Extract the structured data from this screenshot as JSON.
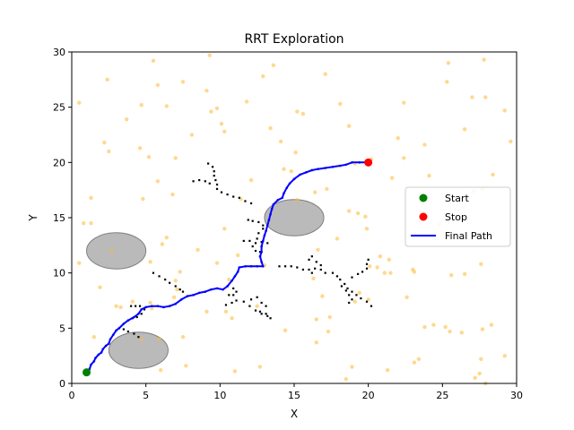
{
  "chart_data": {
    "type": "scatter",
    "title": "RRT Exploration",
    "xlabel": "X",
    "ylabel": "Y",
    "xlim": [
      0,
      30
    ],
    "ylim": [
      0,
      30
    ],
    "xticks": [
      0,
      5,
      10,
      15,
      20,
      25,
      30
    ],
    "yticks": [
      0,
      5,
      10,
      15,
      20,
      25,
      30
    ],
    "grid": false,
    "legend_position": "center-right",
    "colors": {
      "samples": "#ffb833",
      "tree": "#000000",
      "path": "#0000ff",
      "start": "#008000",
      "stop": "#ff0000",
      "obstacle": "#a9a9a9"
    },
    "obstacles": [
      {
        "cx": 3.0,
        "cy": 12.0,
        "rx": 2.0,
        "ry": 2.0
      },
      {
        "cx": 15.0,
        "cy": 15.0,
        "rx": 2.0,
        "ry": 2.0
      },
      {
        "cx": 4.5,
        "cy": 3.0,
        "rx": 2.0,
        "ry": 2.0
      }
    ],
    "samples": [
      [
        0.5,
        25.4
      ],
      [
        1.3,
        16.8
      ],
      [
        0.8,
        14.5
      ],
      [
        1.3,
        14.5
      ],
      [
        0.5,
        10.9
      ],
      [
        2.2,
        21.8
      ],
      [
        2.5,
        21.0
      ],
      [
        2.4,
        27.5
      ],
      [
        3.7,
        23.9
      ],
      [
        4.7,
        25.2
      ],
      [
        4.6,
        21.3
      ],
      [
        4.8,
        16.7
      ],
      [
        5.5,
        29.2
      ],
      [
        5.8,
        27.0
      ],
      [
        6.4,
        25.1
      ],
      [
        6.8,
        17.1
      ],
      [
        6.4,
        13.2
      ],
      [
        5.8,
        18.3
      ],
      [
        5.2,
        20.5
      ],
      [
        7.5,
        27.3
      ],
      [
        7.0,
        20.4
      ],
      [
        8.1,
        22.5
      ],
      [
        9.1,
        26.5
      ],
      [
        9.4,
        24.6
      ],
      [
        9.8,
        24.9
      ],
      [
        10.1,
        23.5
      ],
      [
        10.3,
        22.8
      ],
      [
        9.3,
        29.7
      ],
      [
        10.3,
        14.0
      ],
      [
        11.4,
        16.7
      ],
      [
        12.1,
        18.4
      ],
      [
        11.8,
        25.5
      ],
      [
        12.9,
        27.8
      ],
      [
        13.6,
        28.8
      ],
      [
        14.1,
        21.9
      ],
      [
        13.4,
        23.1
      ],
      [
        14.3,
        19.4
      ],
      [
        14.8,
        19.2
      ],
      [
        15.1,
        20.9
      ],
      [
        15.2,
        24.6
      ],
      [
        15.6,
        24.4
      ],
      [
        15.2,
        16.6
      ],
      [
        16.4,
        17.3
      ],
      [
        17.1,
        28.0
      ],
      [
        17.2,
        17.6
      ],
      [
        18.1,
        25.3
      ],
      [
        18.7,
        23.3
      ],
      [
        19.1,
        19.9
      ],
      [
        19.3,
        15.4
      ],
      [
        18.7,
        15.6
      ],
      [
        19.8,
        15.1
      ],
      [
        19.9,
        14.0
      ],
      [
        20.8,
        11.5
      ],
      [
        21.1,
        10.0
      ],
      [
        21.5,
        10.0
      ],
      [
        21.4,
        11.2
      ],
      [
        20.2,
        20.3
      ],
      [
        20.1,
        10.6
      ],
      [
        21.6,
        18.6
      ],
      [
        22.0,
        22.2
      ],
      [
        22.4,
        25.4
      ],
      [
        22.4,
        20.4
      ],
      [
        22.6,
        7.8
      ],
      [
        23.0,
        10.3
      ],
      [
        23.1,
        10.1
      ],
      [
        23.8,
        21.6
      ],
      [
        25.4,
        29.0
      ],
      [
        25.3,
        27.3
      ],
      [
        26.5,
        23.0
      ],
      [
        27.0,
        25.9
      ],
      [
        27.9,
        25.9
      ],
      [
        27.8,
        29.3
      ],
      [
        29.2,
        24.7
      ],
      [
        29.6,
        21.9
      ],
      [
        28.4,
        18.9
      ],
      [
        27.7,
        17.6
      ],
      [
        27.1,
        17.4
      ],
      [
        27.6,
        10.8
      ],
      [
        26.5,
        9.9
      ],
      [
        25.6,
        9.8
      ],
      [
        28.3,
        5.3
      ],
      [
        27.7,
        4.9
      ],
      [
        26.3,
        4.6
      ],
      [
        25.5,
        4.7
      ],
      [
        25.2,
        5.1
      ],
      [
        24.4,
        5.3
      ],
      [
        23.8,
        5.1
      ],
      [
        23.4,
        2.2
      ],
      [
        23.1,
        1.9
      ],
      [
        21.3,
        1.2
      ],
      [
        18.9,
        1.5
      ],
      [
        18.5,
        0.4
      ],
      [
        16.5,
        3.7
      ],
      [
        16.5,
        5.8
      ],
      [
        17.3,
        4.7
      ],
      [
        17.4,
        6.0
      ],
      [
        16.9,
        7.9
      ],
      [
        19.1,
        7.4
      ],
      [
        20.0,
        7.6
      ],
      [
        19.4,
        8.2
      ],
      [
        14.4,
        4.8
      ],
      [
        12.7,
        1.5
      ],
      [
        11.0,
        1.1
      ],
      [
        9.1,
        6.5
      ],
      [
        10.4,
        6.5
      ],
      [
        10.8,
        5.9
      ],
      [
        13.0,
        10.7
      ],
      [
        16.3,
        9.5
      ],
      [
        7.0,
        9.3
      ],
      [
        7.3,
        10.1
      ],
      [
        7.1,
        8.5
      ],
      [
        6.9,
        7.8
      ],
      [
        7.5,
        4.2
      ],
      [
        7.7,
        1.6
      ],
      [
        6.0,
        1.2
      ],
      [
        5.3,
        7.3
      ],
      [
        5.4,
        6.8
      ],
      [
        5.3,
        11.0
      ],
      [
        5.9,
        4.0
      ],
      [
        4.7,
        4.0
      ],
      [
        3.0,
        7.0
      ],
      [
        2.7,
        12.0
      ],
      [
        1.5,
        4.2
      ],
      [
        3.3,
        6.9
      ],
      [
        27.2,
        0.5
      ],
      [
        27.5,
        0.9
      ],
      [
        27.6,
        2.2
      ],
      [
        27.9,
        0.0
      ],
      [
        29.2,
        2.5
      ],
      [
        20.6,
        10.5
      ],
      [
        12.5,
        7.0
      ],
      [
        11.2,
        11.6
      ],
      [
        10.6,
        9.4
      ],
      [
        9.8,
        10.9
      ],
      [
        8.5,
        12.1
      ],
      [
        6.1,
        12.6
      ],
      [
        4.1,
        7.4
      ],
      [
        1.9,
        8.7
      ],
      [
        16.6,
        12.1
      ],
      [
        17.9,
        13.1
      ],
      [
        24.8,
        14.4
      ],
      [
        25.7,
        13.6
      ],
      [
        24.1,
        18.8
      ]
    ],
    "tree_nodes": [
      [
        9.2,
        19.9
      ],
      [
        9.5,
        19.6
      ],
      [
        9.6,
        19.2
      ],
      [
        9.6,
        18.8
      ],
      [
        9.7,
        18.4
      ],
      [
        9.8,
        18.0
      ],
      [
        9.8,
        17.6
      ],
      [
        10.1,
        17.3
      ],
      [
        10.5,
        17.1
      ],
      [
        10.9,
        16.9
      ],
      [
        11.3,
        16.8
      ],
      [
        11.7,
        16.5
      ],
      [
        12.1,
        16.3
      ],
      [
        8.2,
        18.3
      ],
      [
        8.6,
        18.4
      ],
      [
        9.0,
        18.3
      ],
      [
        9.3,
        18.1
      ],
      [
        11.9,
        14.8
      ],
      [
        12.2,
        14.7
      ],
      [
        12.6,
        14.6
      ],
      [
        12.9,
        14.3
      ],
      [
        12.9,
        14.0
      ],
      [
        12.6,
        13.6
      ],
      [
        12.5,
        13.1
      ],
      [
        12.8,
        12.8
      ],
      [
        13.2,
        12.7
      ],
      [
        11.6,
        12.9
      ],
      [
        12.0,
        12.9
      ],
      [
        12.4,
        12.7
      ],
      [
        12.2,
        12.4
      ],
      [
        12.4,
        12.0
      ],
      [
        12.7,
        11.9
      ],
      [
        5.5,
        10.0
      ],
      [
        5.9,
        9.7
      ],
      [
        6.3,
        9.4
      ],
      [
        6.6,
        9.1
      ],
      [
        7.0,
        8.8
      ],
      [
        7.3,
        8.5
      ],
      [
        7.5,
        8.3
      ],
      [
        4.0,
        7.0
      ],
      [
        4.3,
        7.0
      ],
      [
        4.6,
        7.0
      ],
      [
        4.9,
        6.7
      ],
      [
        4.7,
        6.3
      ],
      [
        4.4,
        6.0
      ],
      [
        4.1,
        5.9
      ],
      [
        3.5,
        4.9
      ],
      [
        3.8,
        4.7
      ],
      [
        4.2,
        4.5
      ],
      [
        4.5,
        4.2
      ],
      [
        10.4,
        7.1
      ],
      [
        10.8,
        7.3
      ],
      [
        11.1,
        7.5
      ],
      [
        10.9,
        8.0
      ],
      [
        11.1,
        8.3
      ],
      [
        10.6,
        8.0
      ],
      [
        10.9,
        8.6
      ],
      [
        11.6,
        7.4
      ],
      [
        12.0,
        7.0
      ],
      [
        12.4,
        6.6
      ],
      [
        12.8,
        6.3
      ],
      [
        13.2,
        6.1
      ],
      [
        13.4,
        5.9
      ],
      [
        12.7,
        6.5
      ],
      [
        13.1,
        6.3
      ],
      [
        12.1,
        7.6
      ],
      [
        12.5,
        7.8
      ],
      [
        12.8,
        7.3
      ],
      [
        13.1,
        7.0
      ],
      [
        14.0,
        10.6
      ],
      [
        14.4,
        10.6
      ],
      [
        14.8,
        10.6
      ],
      [
        15.2,
        10.5
      ],
      [
        15.6,
        10.3
      ],
      [
        16.0,
        10.3
      ],
      [
        16.2,
        10.0
      ],
      [
        16.4,
        10.4
      ],
      [
        16.8,
        10.3
      ],
      [
        17.1,
        10.0
      ],
      [
        16.0,
        11.2
      ],
      [
        16.2,
        11.5
      ],
      [
        16.5,
        11.0
      ],
      [
        16.8,
        10.7
      ],
      [
        17.6,
        10.0
      ],
      [
        17.9,
        9.7
      ],
      [
        18.1,
        9.4
      ],
      [
        18.4,
        9.0
      ],
      [
        18.6,
        8.6
      ],
      [
        18.9,
        8.3
      ],
      [
        19.2,
        8.0
      ],
      [
        19.5,
        7.7
      ],
      [
        19.9,
        7.4
      ],
      [
        20.2,
        7.0
      ],
      [
        18.2,
        8.8
      ],
      [
        18.5,
        8.4
      ],
      [
        18.7,
        8.0
      ],
      [
        18.9,
        7.6
      ],
      [
        18.7,
        7.3
      ],
      [
        18.9,
        9.6
      ],
      [
        19.3,
        9.9
      ],
      [
        19.6,
        10.1
      ],
      [
        19.9,
        10.4
      ],
      [
        19.9,
        10.8
      ],
      [
        20.0,
        11.2
      ]
    ],
    "final_path": [
      [
        1.0,
        1.0
      ],
      [
        1.2,
        1.3
      ],
      [
        1.3,
        1.7
      ],
      [
        1.5,
        2.0
      ],
      [
        1.6,
        2.3
      ],
      [
        1.8,
        2.6
      ],
      [
        2.0,
        2.8
      ],
      [
        2.1,
        3.1
      ],
      [
        2.3,
        3.4
      ],
      [
        2.5,
        3.6
      ],
      [
        2.6,
        4.0
      ],
      [
        2.8,
        4.4
      ],
      [
        3.0,
        4.8
      ],
      [
        3.2,
        5.0
      ],
      [
        3.5,
        5.4
      ],
      [
        3.8,
        5.7
      ],
      [
        4.2,
        6.0
      ],
      [
        4.5,
        6.3
      ],
      [
        4.7,
        6.7
      ],
      [
        5.0,
        6.9
      ],
      [
        5.4,
        7.0
      ],
      [
        5.8,
        7.0
      ],
      [
        6.2,
        6.9
      ],
      [
        6.6,
        7.0
      ],
      [
        7.0,
        7.2
      ],
      [
        7.4,
        7.6
      ],
      [
        7.8,
        7.9
      ],
      [
        8.2,
        8.0
      ],
      [
        8.6,
        8.2
      ],
      [
        9.0,
        8.3
      ],
      [
        9.4,
        8.5
      ],
      [
        9.8,
        8.6
      ],
      [
        10.2,
        8.5
      ],
      [
        10.5,
        8.8
      ],
      [
        10.8,
        9.3
      ],
      [
        11.0,
        9.7
      ],
      [
        11.2,
        10.1
      ],
      [
        11.3,
        10.5
      ],
      [
        11.7,
        10.6
      ],
      [
        12.1,
        10.6
      ],
      [
        12.5,
        10.6
      ],
      [
        12.9,
        10.6
      ],
      [
        12.8,
        11.0
      ],
      [
        12.7,
        11.5
      ],
      [
        12.8,
        11.9
      ],
      [
        12.8,
        12.4
      ],
      [
        12.9,
        12.9
      ],
      [
        13.0,
        13.4
      ],
      [
        13.1,
        13.8
      ],
      [
        13.2,
        14.3
      ],
      [
        13.3,
        14.8
      ],
      [
        13.4,
        15.3
      ],
      [
        13.5,
        15.8
      ],
      [
        13.6,
        16.2
      ],
      [
        13.9,
        16.6
      ],
      [
        14.2,
        16.8
      ],
      [
        14.3,
        17.2
      ],
      [
        14.5,
        17.7
      ],
      [
        14.7,
        18.1
      ],
      [
        15.0,
        18.5
      ],
      [
        15.4,
        18.9
      ],
      [
        15.8,
        19.1
      ],
      [
        16.2,
        19.3
      ],
      [
        16.6,
        19.4
      ],
      [
        17.1,
        19.5
      ],
      [
        17.6,
        19.6
      ],
      [
        18.1,
        19.7
      ],
      [
        18.5,
        19.8
      ],
      [
        18.9,
        20.0
      ],
      [
        19.4,
        20.0
      ],
      [
        20.0,
        20.0
      ]
    ],
    "start": [
      1.0,
      1.0
    ],
    "stop": [
      20.0,
      20.0
    ],
    "legend": [
      "Start",
      "Stop",
      "Final Path"
    ]
  }
}
